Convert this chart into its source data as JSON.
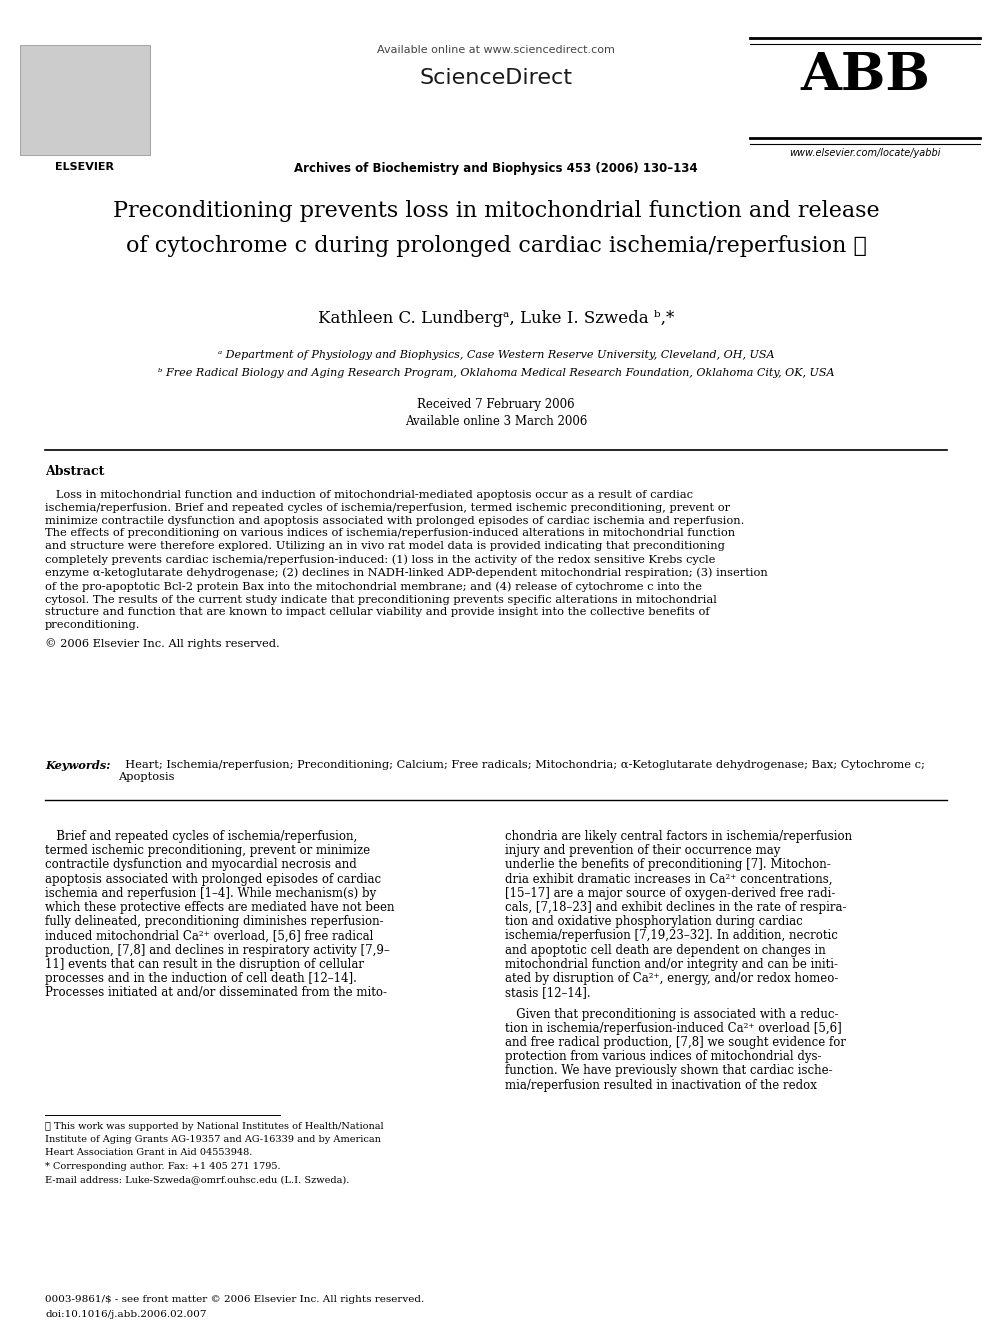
{
  "bg_color": "#ffffff",
  "page_width": 9.92,
  "page_height": 13.23,
  "dpi": 100,
  "header": {
    "available_online": "Available online at www.sciencedirect.com",
    "sciencedirect": "ScienceDirect",
    "journal": "Archives of Biochemistry and Biophysics 453 (2006) 130–134",
    "journal_abbr": "ABB",
    "website": "www.elsevier.com/locate/yabbi",
    "elsevier": "ELSEVIER"
  },
  "title_line1": "Preconditioning prevents loss in mitochondrial function and release",
  "title_line2": "of cytochrome c during prolonged cardiac ischemia/reperfusion ☆",
  "authors_line": "Kathleen C. Lundbergᵃ, Luke I. Szweda ᵇ,*",
  "affil_a": "ᵃ Department of Physiology and Biophysics, Case Western Reserve University, Cleveland, OH, USA",
  "affil_b": "ᵇ Free Radical Biology and Aging Research Program, Oklahoma Medical Research Foundation, Oklahoma City, OK, USA",
  "received": "Received 7 February 2006",
  "available_date": "Available online 3 March 2006",
  "abstract_title": "Abstract",
  "abstract_body": "   Loss in mitochondrial function and induction of mitochondrial-mediated apoptosis occur as a result of cardiac ischemia/reperfusion. Brief and repeated cycles of ischemia/reperfusion, termed ischemic preconditioning, prevent or minimize contractile dysfunction and apoptosis associated with prolonged episodes of cardiac ischemia and reperfusion. The effects of preconditioning on various indices of ischemia/reperfusion-induced alterations in mitochondrial function and structure were therefore explored. Utilizing an in vivo rat model data is provided indicating that preconditioning completely prevents cardiac ischemia/reperfusion-induced: (1) loss in the activity of the redox sensitive Krebs cycle enzyme α-ketoglutarate dehydrogenase; (2) declines in NADH-linked ADP-dependent mitochondrial respiration; (3) insertion of the pro-apoptotic Bcl-2 protein Bax into the mitochondrial membrane; and (4) release of cytochrome c into the cytosol. The results of the current study indicate that preconditioning prevents specific alterations in mitochondrial structure and function that are known to impact cellular viability and provide insight into the collective benefits of preconditioning.\n© 2006 Elsevier Inc. All rights reserved.",
  "keywords_label": "Keywords:",
  "keywords_text": "  Heart; Ischemia/reperfusion; Preconditioning; Calcium; Free radicals; Mitochondria; α-Ketoglutarate dehydrogenase; Bax; Cytochrome c;\nApoptosis",
  "body_col1_lines": [
    "   Brief and repeated cycles of ischemia/reperfusion,",
    "termed ischemic preconditioning, prevent or minimize",
    "contractile dysfunction and myocardial necrosis and",
    "apoptosis associated with prolonged episodes of cardiac",
    "ischemia and reperfusion [1–4]. While mechanism(s) by",
    "which these protective effects are mediated have not been",
    "fully delineated, preconditioning diminishes reperfusion-",
    "induced mitochondrial Ca²⁺ overload, [5,6] free radical",
    "production, [7,8] and declines in respiratory activity [7,9–",
    "11] events that can result in the disruption of cellular",
    "processes and in the induction of cell death [12–14].",
    "Processes initiated at and/or disseminated from the mito-"
  ],
  "body_col2_lines": [
    "chondria are likely central factors in ischemia/reperfusion",
    "injury and prevention of their occurrence may",
    "underlie the benefits of preconditioning [7]. Mitochon-",
    "dria exhibit dramatic increases in Ca²⁺ concentrations,",
    "[15–17] are a major source of oxygen-derived free radi-",
    "cals, [7,18–23] and exhibit declines in the rate of respira-",
    "tion and oxidative phosphorylation during cardiac",
    "ischemia/reperfusion [7,19,23–32]. In addition, necrotic",
    "and apoptotic cell death are dependent on changes in",
    "mitochondrial function and/or integrity and can be initi-",
    "ated by disruption of Ca²⁺, energy, and/or redox homeo-",
    "stasis [12–14]."
  ],
  "body_col2_para2": [
    "   Given that preconditioning is associated with a reduc-",
    "tion in ischemia/reperfusion-induced Ca²⁺ overload [5,6]",
    "and free radical production, [7,8] we sought evidence for",
    "protection from various indices of mitochondrial dys-",
    "function. We have previously shown that cardiac ische-",
    "mia/reperfusion resulted in inactivation of the redox"
  ],
  "footnote_line": "* This work was supported by National Institutes of Health/National Institute of Aging Grants AG-19357 and AG-16339 and by American",
  "footnote_line2": "Heart Association Grant in Aid 04553948.",
  "footnote_corr": "* Corresponding author. Fax: +1 405 271 1795.",
  "footnote_email": "E-mail address: Luke-Szweda@omrf.ouhsc.edu (L.I. Szweda).",
  "footer_line1": "0003-9861/$ - see front matter © 2006 Elsevier Inc. All rights reserved.",
  "footer_line2": "doi:10.1016/j.abb.2006.02.007"
}
